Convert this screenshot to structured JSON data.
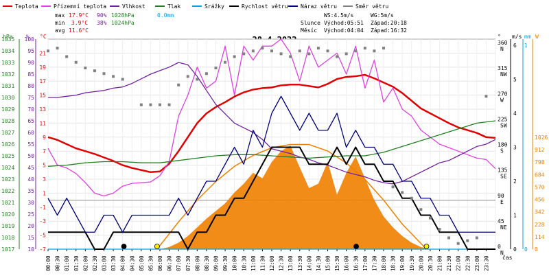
{
  "legend": [
    {
      "label": "Teplota",
      "color": "#e00000"
    },
    {
      "label": "Přízemní teplota",
      "color": "#e040e0"
    },
    {
      "label": "Vlhkost",
      "color": "#7020a0"
    },
    {
      "label": "Tlak",
      "color": "#208020"
    },
    {
      "label": "Srážky",
      "color": "#00a0e0"
    },
    {
      "label": "Rychlost větru",
      "color": "#000000"
    },
    {
      "label": "Náraz větru",
      "color": "#000080"
    },
    {
      "label": "Směr větru",
      "color": "#808080"
    }
  ],
  "stats": {
    "max": {
      "label": "max",
      "temp": "17.9°C",
      "hum": "90%",
      "press": "1028hPa",
      "rain": "0.0mm"
    },
    "min": {
      "label": "min",
      "temp": "3.9°C",
      "hum": "38%",
      "press": "1024hPa"
    },
    "avg": {
      "label": "avg",
      "temp": "11.6°C"
    }
  },
  "wind_info": {
    "ws": "WS:4.5m/s",
    "wg": "WG:5m/s"
  },
  "sun_info": {
    "label": "Slunce",
    "rise": "Východ:05:51",
    "set": "Západ:20:18"
  },
  "moon_info": {
    "label": "Měsíc",
    "rise": "Východ:04:04",
    "set": "Západ:16:32"
  },
  "chart_data": {
    "type": "line",
    "title": "28.4.2022",
    "x_label": "čas",
    "x_ticks": [
      "00:00",
      "00:30",
      "01:00",
      "01:30",
      "02:00",
      "02:30",
      "03:00",
      "03:30",
      "04:00",
      "04:30",
      "05:00",
      "05:30",
      "06:00",
      "06:30",
      "07:00",
      "07:30",
      "08:00",
      "08:30",
      "09:00",
      "09:30",
      "10:00",
      "10:30",
      "11:00",
      "11:30",
      "12:00",
      "12:30",
      "13:00",
      "13:30",
      "14:00",
      "14:30",
      "15:00",
      "15:30",
      "16:00",
      "16:30",
      "17:00",
      "17:30",
      "18:00",
      "18:30",
      "19:00",
      "19:30",
      "20:00",
      "20:30",
      "21:00",
      "21:30",
      "22:00",
      "22:30",
      "23:00",
      "23:30"
    ],
    "axes": {
      "pressure": {
        "unit": "hPa",
        "min": 1017,
        "max": 1035,
        "ticks": [
          1017,
          1018,
          1019,
          1020,
          1021,
          1022,
          1023,
          1024,
          1025,
          1026,
          1027,
          1028,
          1029,
          1030,
          1031,
          1032,
          1033,
          1034,
          1035
        ]
      },
      "humidity": {
        "unit": "%",
        "ticks": [
          10,
          15,
          20,
          25,
          30,
          35,
          40,
          45,
          50,
          55,
          60,
          65,
          70,
          75,
          80,
          85,
          90,
          95,
          100
        ]
      },
      "temperature": {
        "unit": "°C",
        "min": -7,
        "max": 23,
        "ticks": [
          -7,
          -5,
          -3,
          -1,
          1,
          3,
          5,
          7,
          9,
          11,
          13,
          15,
          17,
          19,
          21
        ]
      },
      "direction": {
        "unit": "°",
        "ticks": [
          {
            "deg": 0,
            "dir": "N"
          },
          {
            "deg": 45,
            "dir": "NE"
          },
          {
            "deg": 90,
            "dir": "E"
          },
          {
            "deg": 135,
            "dir": "SE"
          },
          {
            "deg": 180,
            "dir": "S"
          },
          {
            "deg": 225,
            "dir": "SW"
          },
          {
            "deg": 270,
            "dir": "W"
          },
          {
            "deg": 315,
            "dir": "NW"
          },
          {
            "deg": 360,
            "dir": "N"
          }
        ]
      },
      "wind": {
        "unit": "m/s",
        "ticks": [
          0,
          1,
          2,
          3,
          4,
          5,
          6
        ]
      },
      "rain": {
        "unit": "mm",
        "ticks": [
          0,
          1
        ]
      },
      "solar": {
        "unit": "W",
        "ticks": [
          0,
          114,
          228,
          342,
          456,
          570,
          684,
          798,
          912,
          1026
        ]
      }
    },
    "series": [
      {
        "name": "Teplota",
        "axis": "temperature",
        "color": "#e00000",
        "x": [
          0,
          0.5,
          1,
          1.5,
          2,
          2.5,
          3,
          3.5,
          4,
          4.5,
          5,
          5.5,
          6,
          6.5,
          7,
          7.5,
          8,
          8.5,
          9,
          9.5,
          10,
          10.5,
          11,
          11.5,
          12,
          12.5,
          13,
          13.5,
          14,
          14.5,
          15,
          15.5,
          16,
          16.5,
          17,
          17.5,
          18,
          18.5,
          19,
          19.5,
          20,
          20.5,
          21,
          21.5,
          22,
          22.5,
          23,
          23.5,
          24
        ],
        "y": [
          9,
          8.6,
          8,
          7.4,
          7,
          6.6,
          6.1,
          5.6,
          5,
          4.6,
          4.3,
          4.0,
          4.1,
          5.2,
          7.0,
          9.0,
          11,
          12.4,
          13.3,
          14,
          14.8,
          15.4,
          15.8,
          16,
          16.1,
          16.4,
          16.5,
          16.5,
          16.3,
          16.1,
          16.6,
          17.3,
          17.6,
          17.7,
          17.9,
          17.4,
          16.8,
          16.2,
          15.3,
          14.2,
          13.1,
          12.4,
          11.7,
          11,
          10.4,
          10,
          9.6,
          9,
          8.9
        ]
      },
      {
        "name": "Přízemní teplota",
        "axis": "temperature",
        "color": "#e040e0",
        "x": [
          0,
          0.5,
          1,
          1.5,
          2,
          2.5,
          3,
          3.5,
          4,
          4.5,
          5,
          5.5,
          6,
          6.5,
          7,
          7.5,
          8,
          8.5,
          9,
          9.5,
          10,
          10.5,
          11,
          11.5,
          12,
          12.5,
          13,
          13.5,
          14,
          14.5,
          15,
          15.5,
          16,
          16.5,
          17,
          17.5,
          18,
          18.5,
          19,
          19.5,
          20,
          20.5,
          21,
          21.5,
          22,
          22.5,
          23,
          23.5,
          24
        ],
        "y": [
          7.4,
          5.0,
          4.6,
          3.8,
          2.5,
          1.0,
          0.6,
          1.0,
          2.0,
          2.4,
          2.5,
          2.6,
          3.5,
          5.5,
          12,
          15,
          19,
          16,
          17,
          22,
          15,
          22,
          20,
          22,
          22,
          23,
          21,
          17,
          22,
          19,
          20,
          21,
          18,
          22,
          16,
          20,
          14,
          16,
          13,
          12,
          10,
          9,
          8,
          7.5,
          7,
          6.5,
          6,
          5.8,
          4.5
        ]
      },
      {
        "name": "Vlhkost",
        "axis": "humidity",
        "color": "#7020a0",
        "x": [
          0,
          0.5,
          1,
          1.5,
          2,
          2.5,
          3,
          3.5,
          4,
          4.5,
          5,
          5.5,
          6,
          6.5,
          7,
          7.5,
          8,
          8.5,
          9,
          9.5,
          10,
          10.5,
          11,
          11.5,
          12,
          12.5,
          13,
          13.5,
          14,
          14.5,
          15,
          15.5,
          16,
          16.5,
          17,
          17.5,
          18,
          18.5,
          19,
          19.5,
          20,
          20.5,
          21,
          21.5,
          22,
          22.5,
          23,
          23.5,
          24
        ],
        "y": [
          75,
          75,
          75.5,
          76,
          77,
          77.5,
          78,
          79,
          79.5,
          81,
          83,
          85,
          86.5,
          88,
          90,
          89,
          84,
          78,
          72,
          68,
          64,
          62,
          60,
          57,
          53,
          52,
          51,
          49.5,
          48.5,
          47,
          46,
          44.5,
          43,
          42,
          41,
          39.5,
          38.5,
          38,
          39,
          41,
          43,
          45,
          47,
          48,
          50,
          52,
          54,
          55,
          57
        ]
      },
      {
        "name": "Tlak",
        "axis": "pressure",
        "color": "#208020",
        "x": [
          0,
          1,
          2,
          3,
          4,
          5,
          6,
          7,
          8,
          9,
          10,
          11,
          12,
          13,
          14,
          15,
          16,
          17,
          18,
          19,
          20,
          21,
          22,
          23,
          24
        ],
        "y": [
          1024.1,
          1024.2,
          1024.4,
          1024.5,
          1024.5,
          1024.4,
          1024.4,
          1024.6,
          1024.8,
          1025,
          1025.1,
          1025.1,
          1025,
          1024.9,
          1024.8,
          1024.9,
          1025,
          1025,
          1025.3,
          1025.8,
          1026.3,
          1026.8,
          1027.3,
          1027.8,
          1028
        ]
      },
      {
        "name": "Srážky",
        "axis": "rain",
        "color": "#00a0e0",
        "x": [
          0,
          24
        ],
        "y": [
          0,
          0
        ]
      },
      {
        "name": "Rychlost větru",
        "axis": "wind",
        "color": "#000000",
        "x": [
          0,
          0.5,
          1,
          1.5,
          2,
          2.5,
          3,
          3.5,
          4,
          4.5,
          5,
          5.5,
          6,
          6.5,
          7,
          7.5,
          8,
          8.5,
          9,
          9.5,
          10,
          10.5,
          11,
          11.5,
          12,
          12.5,
          13,
          13.5,
          14,
          14.5,
          15,
          15.5,
          16,
          16.5,
          17,
          17.5,
          18,
          18.5,
          19,
          19.5,
          20,
          20.5,
          21,
          21.5,
          22,
          22.5,
          23,
          23.5,
          24
        ],
        "y": [
          0.5,
          0.5,
          0.5,
          0.5,
          0.5,
          0,
          0,
          0.5,
          0.5,
          0.5,
          0.5,
          0.5,
          0.5,
          0.5,
          0.5,
          0,
          0.5,
          0.5,
          1,
          1,
          1.5,
          1.5,
          2,
          2.5,
          3,
          3,
          3,
          3,
          2.5,
          2.5,
          2.5,
          3,
          2.5,
          3,
          2.5,
          2.5,
          2,
          2,
          1.5,
          1.5,
          1,
          1,
          0.5,
          0.5,
          0.5,
          0,
          0,
          0,
          0
        ]
      },
      {
        "name": "Náraz větru",
        "axis": "wind",
        "color": "#000080",
        "x": [
          0,
          0.5,
          1,
          1.5,
          2,
          2.5,
          3,
          3.5,
          4,
          4.5,
          5,
          5.5,
          6,
          6.5,
          7,
          7.5,
          8,
          8.5,
          9,
          9.5,
          10,
          10.5,
          11,
          11.5,
          12,
          12.5,
          13,
          13.5,
          14,
          14.5,
          15,
          15.5,
          16,
          16.5,
          17,
          17.5,
          18,
          18.5,
          19,
          19.5,
          20,
          20.5,
          21,
          21.5,
          22,
          22.5,
          23,
          23.5,
          24
        ],
        "y": [
          1.5,
          1,
          1.5,
          1,
          0.5,
          0.5,
          1,
          1,
          0.5,
          1,
          1,
          1,
          1,
          1,
          1.5,
          1,
          1.5,
          2,
          2,
          2.5,
          3,
          2.5,
          3.5,
          3,
          4,
          4.5,
          4,
          3.5,
          4,
          3.5,
          3.5,
          4,
          3,
          3.5,
          3,
          3,
          2.5,
          2.5,
          2,
          2,
          1.5,
          1.5,
          1,
          1,
          0.5,
          0.5,
          0.5,
          0.5,
          0.5
        ]
      },
      {
        "name": "Směr větru",
        "axis": "direction",
        "color": "#808080",
        "x": [
          0,
          0.5,
          1,
          1.5,
          2,
          2.5,
          3,
          3.5,
          4,
          5,
          5.5,
          6,
          6.5,
          7,
          7.5,
          8,
          8.5,
          9,
          9.5,
          10,
          10.5,
          11,
          11.5,
          12,
          12.5,
          13,
          13.5,
          14,
          14.5,
          15,
          15.5,
          16,
          16.5,
          17,
          17.5,
          18,
          18.5,
          19,
          19.5,
          20,
          20.5,
          21,
          21.5,
          22,
          22.5,
          23,
          23.5
        ],
        "y": [
          350,
          355,
          340,
          330,
          320,
          315,
          310,
          305,
          300,
          255,
          255,
          255,
          255,
          290,
          305,
          300,
          310,
          320,
          330,
          340,
          345,
          350,
          355,
          350,
          345,
          340,
          350,
          345,
          355,
          350,
          340,
          345,
          350,
          355,
          350,
          355,
          110,
          100,
          90,
          70,
          55,
          35,
          20,
          10,
          15,
          20,
          270
        ]
      }
    ],
    "solar_area": {
      "name": "Sluneční záření",
      "axis": "solar",
      "color": "#f08000",
      "x": [
        6,
        6.5,
        7,
        7.5,
        8,
        8.5,
        9,
        9.5,
        10,
        10.5,
        11,
        11.5,
        12,
        12.5,
        13,
        13.5,
        14,
        14.5,
        15,
        15.5,
        16,
        16.5,
        17,
        17.5,
        18,
        18.5,
        19,
        19.5,
        20,
        20.5
      ],
      "y": [
        0,
        20,
        60,
        120,
        200,
        280,
        350,
        420,
        520,
        600,
        700,
        650,
        800,
        900,
        950,
        750,
        560,
        600,
        800,
        500,
        700,
        850,
        650,
        450,
        300,
        200,
        120,
        60,
        20,
        0
      ]
    },
    "solar_curve": {
      "axis": "solar",
      "color": "#f08000",
      "x": [
        5.85,
        7,
        8,
        9,
        10,
        11,
        12,
        13,
        14,
        15,
        16,
        17,
        18,
        19,
        20.3
      ],
      "y": [
        0,
        250,
        450,
        620,
        760,
        860,
        930,
        960,
        960,
        900,
        790,
        640,
        450,
        230,
        0
      ]
    },
    "markers": [
      {
        "type": "moon-rise",
        "time": 4.07,
        "color": "#000000"
      },
      {
        "type": "sunrise",
        "time": 5.85,
        "color": "#ffee00"
      },
      {
        "type": "moon-set",
        "time": 16.53,
        "color": "#000000"
      },
      {
        "type": "sunset",
        "time": 20.3,
        "color": "#ffee00"
      }
    ]
  }
}
